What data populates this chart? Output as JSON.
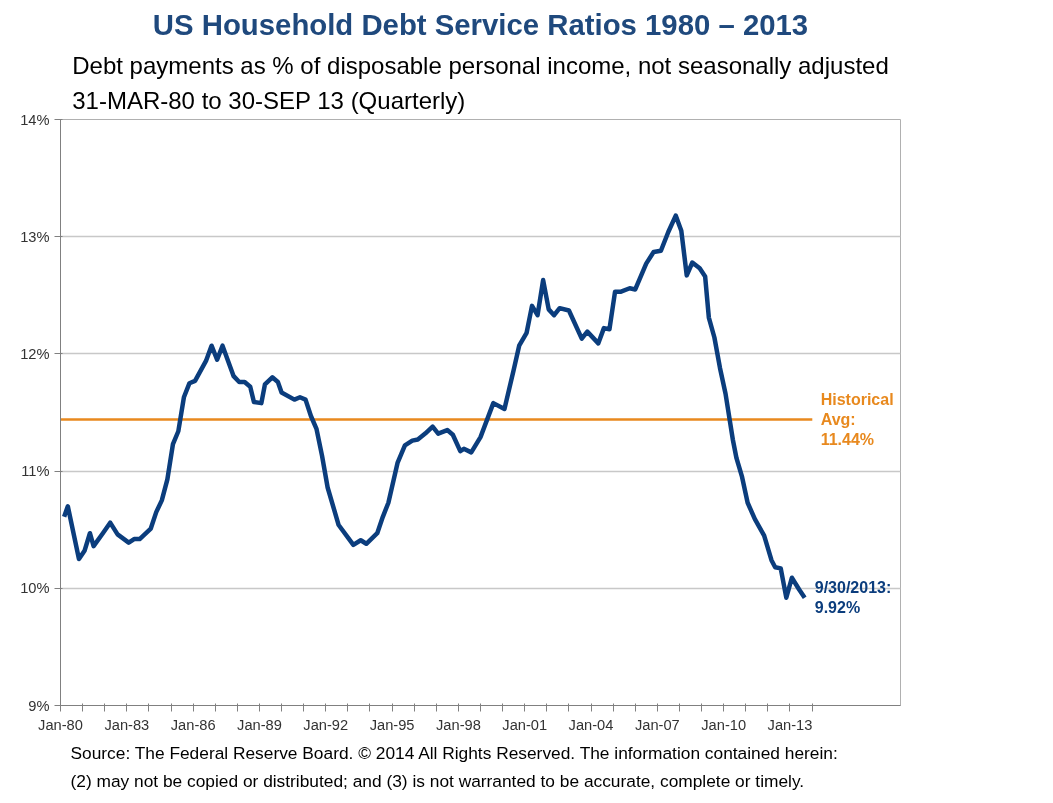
{
  "chart_data": {
    "type": "line",
    "title": "US Household Debt Service Ratios 1980 – 2013",
    "subtitle": "Debt payments as % of disposable personal income, not seasonally adjusted\n31-MAR-80 to 30-SEP 13 (Quarterly)",
    "series": [
      {
        "color": "#0b3d7d",
        "x": [
          "1980-03",
          "1980-05",
          "1980-11",
          "1981-02",
          "1981-05",
          "1981-07",
          "1981-12",
          "1982-04",
          "1982-08",
          "1983-02",
          "1983-05",
          "1983-08",
          "1984-02",
          "1984-05",
          "1984-08",
          "1984-11",
          "1985-02",
          "1985-05",
          "1985-08",
          "1985-11",
          "1986-02",
          "1986-08",
          "1986-11",
          "1987-02",
          "1987-05",
          "1987-11",
          "1988-02",
          "1988-05",
          "1988-08",
          "1988-10",
          "1989-02",
          "1989-04",
          "1989-08",
          "1989-11",
          "1990-01",
          "1990-08",
          "1990-11",
          "1991-02",
          "1991-05",
          "1991-08",
          "1991-11",
          "1992-02",
          "1992-08",
          "1993-04",
          "1993-08",
          "1993-11",
          "1994-05",
          "1994-08",
          "1994-11",
          "1995-04",
          "1995-08",
          "1995-12",
          "1996-03",
          "1996-07",
          "1996-11",
          "1997-02",
          "1997-07",
          "1997-10",
          "1998-02",
          "1998-04",
          "1998-08",
          "1999-01",
          "1999-08",
          "2000-02",
          "2000-07",
          "2000-10",
          "2001-02",
          "2001-05",
          "2001-08",
          "2001-11",
          "2002-02",
          "2002-05",
          "2002-08",
          "2003-01",
          "2003-08",
          "2003-11",
          "2004-05",
          "2004-08",
          "2004-11",
          "2005-02",
          "2005-05",
          "2005-10",
          "2006-01",
          "2006-07",
          "2006-11",
          "2007-03",
          "2007-07",
          "2007-11",
          "2008-02",
          "2008-05",
          "2008-08",
          "2008-12",
          "2009-03",
          "2009-05",
          "2009-08",
          "2009-11",
          "2010-02",
          "2010-06",
          "2010-08",
          "2010-11",
          "2011-02",
          "2011-06",
          "2011-11",
          "2012-03",
          "2012-05",
          "2012-08",
          "2012-11",
          "2013-02",
          "2013-06",
          "2013-09"
        ],
        "values": [
          10.61,
          10.7,
          10.25,
          10.32,
          10.47,
          10.36,
          10.47,
          10.56,
          10.46,
          10.39,
          10.42,
          10.42,
          10.51,
          10.65,
          10.75,
          10.93,
          11.23,
          11.34,
          11.63,
          11.75,
          11.77,
          11.94,
          12.07,
          11.95,
          12.07,
          11.81,
          11.76,
          11.76,
          11.72,
          11.59,
          11.58,
          11.74,
          11.8,
          11.76,
          11.67,
          11.61,
          11.63,
          11.61,
          11.47,
          11.36,
          11.13,
          10.86,
          10.54,
          10.37,
          10.41,
          10.38,
          10.47,
          10.61,
          10.73,
          11.07,
          11.22,
          11.26,
          11.27,
          11.32,
          11.38,
          11.32,
          11.35,
          11.31,
          11.17,
          11.19,
          11.16,
          11.29,
          11.58,
          11.53,
          11.86,
          12.07,
          12.18,
          12.41,
          12.33,
          12.63,
          12.38,
          12.33,
          12.39,
          12.37,
          12.13,
          12.19,
          12.09,
          12.22,
          12.21,
          12.53,
          12.53,
          12.56,
          12.55,
          12.77,
          12.87,
          12.88,
          13.04,
          13.18,
          13.05,
          12.67,
          12.78,
          12.73,
          12.66,
          12.31,
          12.14,
          11.88,
          11.66,
          11.27,
          11.11,
          10.95,
          10.73,
          10.59,
          10.45,
          10.24,
          10.18,
          10.17,
          9.92,
          10.09,
          9.99,
          9.92
        ]
      }
    ],
    "xlim": [
      "1980-01",
      "2018-01"
    ],
    "xticks": [
      {
        "value": "1980-01",
        "label": "Jan-80"
      },
      {
        "value": "1981-01",
        "label": null
      },
      {
        "value": "1982-01",
        "label": null
      },
      {
        "value": "1983-01",
        "label": "Jan-83"
      },
      {
        "value": "1984-01",
        "label": null
      },
      {
        "value": "1985-01",
        "label": null
      },
      {
        "value": "1986-01",
        "label": "Jan-86"
      },
      {
        "value": "1987-01",
        "label": null
      },
      {
        "value": "1988-01",
        "label": null
      },
      {
        "value": "1989-01",
        "label": "Jan-89"
      },
      {
        "value": "1990-01",
        "label": null
      },
      {
        "value": "1991-01",
        "label": null
      },
      {
        "value": "1992-01",
        "label": "Jan-92"
      },
      {
        "value": "1993-01",
        "label": null
      },
      {
        "value": "1994-01",
        "label": null
      },
      {
        "value": "1995-01",
        "label": "Jan-95"
      },
      {
        "value": "1996-01",
        "label": null
      },
      {
        "value": "1997-01",
        "label": null
      },
      {
        "value": "1998-01",
        "label": "Jan-98"
      },
      {
        "value": "1999-01",
        "label": null
      },
      {
        "value": "2000-01",
        "label": null
      },
      {
        "value": "2001-01",
        "label": "Jan-01"
      },
      {
        "value": "2002-01",
        "label": null
      },
      {
        "value": "2003-01",
        "label": null
      },
      {
        "value": "2004-01",
        "label": "Jan-04"
      },
      {
        "value": "2005-01",
        "label": null
      },
      {
        "value": "2006-01",
        "label": null
      },
      {
        "value": "2007-01",
        "label": "Jan-07"
      },
      {
        "value": "2008-01",
        "label": null
      },
      {
        "value": "2009-01",
        "label": null
      },
      {
        "value": "2010-01",
        "label": "Jan-10"
      },
      {
        "value": "2011-01",
        "label": null
      },
      {
        "value": "2012-01",
        "label": null
      },
      {
        "value": "2013-01",
        "label": "Jan-13"
      },
      {
        "value": "2014-01",
        "label": null
      }
    ],
    "ylim": [
      9,
      14
    ],
    "yticks": [
      {
        "value": 9,
        "label": "9%"
      },
      {
        "value": 10,
        "label": "10%"
      },
      {
        "value": 11,
        "label": "11%"
      },
      {
        "value": 12,
        "label": "12%"
      },
      {
        "value": 13,
        "label": "13%"
      },
      {
        "value": 14,
        "label": "14%"
      }
    ],
    "grid": "y",
    "line_style": "solid",
    "ref_lines": [
      {
        "axis": "y",
        "value": 11.44,
        "label": "Historical\nAvg:\n11.44%",
        "color": "#e8891e"
      }
    ],
    "annotations": [
      {
        "text": "9/30/2013:\n9.92%",
        "x": "2013-09",
        "y": 9.92
      },
      "Source: The Federal Reserve Board. © 2014 All Rights Reserved. The information contained herein:\n(2) may not be copied or distributed; and (3) is not warranted to be accurate, complete or timely."
    ]
  }
}
